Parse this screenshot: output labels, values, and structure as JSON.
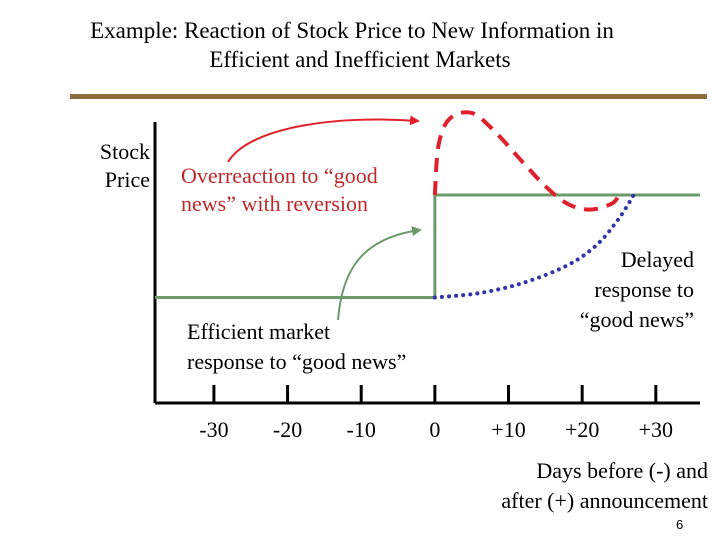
{
  "title": {
    "line1": "Example: Reaction of Stock Price to New Information in",
    "line2": "Efficient and Inefficient Markets"
  },
  "page_number": "6",
  "colors": {
    "rule": "#8a6d3b",
    "efficient": "#6b9a6b",
    "overreaction": "#e0202a",
    "delayed": "#3333aa",
    "overreaction_label": "#c0282a"
  },
  "chart_data": {
    "type": "line",
    "title": "Example: Reaction of Stock Price to New Information in Efficient and Inefficient Markets",
    "ylabel": "Stock Price",
    "xlabel": "Days before (-) and after (+) announcement",
    "x_ticks": [
      "-30",
      "-20",
      "-10",
      "0",
      "+10",
      "+20",
      "+30"
    ],
    "xlim": [
      -38,
      36
    ],
    "ylim": [
      0,
      10
    ],
    "grid": false,
    "series": [
      {
        "key": "efficient",
        "style": "solid",
        "points": [
          [
            -38,
            3.6
          ],
          [
            0,
            3.6
          ],
          [
            0,
            7.1
          ],
          [
            36,
            7.1
          ]
        ]
      },
      {
        "key": "overreaction",
        "style": "dashed",
        "points": [
          [
            0,
            7.1
          ],
          [
            0.5,
            8.8
          ],
          [
            2,
            9.7
          ],
          [
            5,
            9.9
          ],
          [
            8,
            9.3
          ],
          [
            12,
            8.2
          ],
          [
            15,
            7.4
          ],
          [
            18,
            6.8
          ],
          [
            21,
            6.6
          ],
          [
            24,
            6.8
          ],
          [
            25,
            7.1
          ]
        ]
      },
      {
        "key": "delayed",
        "style": "dotted",
        "points": [
          [
            0,
            3.6
          ],
          [
            6,
            3.75
          ],
          [
            12,
            4.1
          ],
          [
            18,
            4.7
          ],
          [
            22,
            5.4
          ],
          [
            25,
            6.3
          ],
          [
            27,
            7.1
          ]
        ]
      }
    ],
    "annotations": [
      {
        "key": "overreaction",
        "text_lines": [
          "Overreaction to “good",
          "news” with reversion"
        ]
      },
      {
        "key": "efficient",
        "text_lines": [
          "Efficient market",
          "response to “good news”"
        ]
      },
      {
        "key": "delayed",
        "text_lines": [
          "Delayed",
          "response to",
          "“good news”"
        ]
      }
    ],
    "axis_labels": {
      "y_lines": [
        "Stock",
        "Price"
      ],
      "x_lines": [
        "Days before (-) and",
        "after (+) announcement"
      ]
    }
  }
}
